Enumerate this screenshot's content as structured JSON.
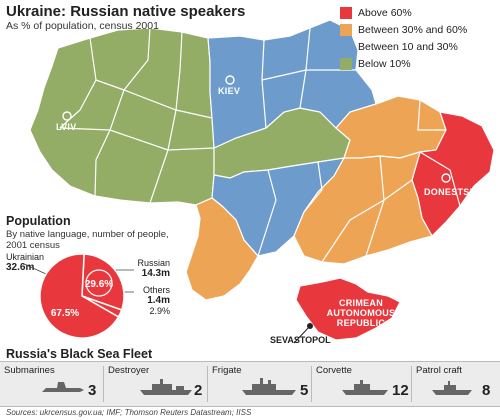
{
  "title": "Ukraine: Russian native speakers",
  "subtitle": "As % of population, census 2001",
  "legend": [
    {
      "label": "Above 60%",
      "color": "#e8383d"
    },
    {
      "label": "Between 30% and 60%",
      "color": "#eea455"
    },
    {
      "label": "Between 10 and 30%",
      "color": "#6d9ccc"
    },
    {
      "label": "Below 10%",
      "color": "#93ac66"
    }
  ],
  "cities": {
    "lviv": "LVIV",
    "kiev": "KIEV",
    "donetsk": "DONESTSK",
    "crimea": [
      "CRIMEAN",
      "AUTONOMOUS",
      "REPUBLIC"
    ],
    "sevastopol": "SEVASTOPOL"
  },
  "population": {
    "title": "Population",
    "subtitle": "By native language, number of people, 2001 census",
    "ukrainian_label": "Ukrainian",
    "ukrainian_value": "32.6m",
    "ukrainian_pct": "67.5%",
    "russian_label": "Russian",
    "russian_value": "14.3m",
    "russian_pct": "29.6%",
    "others_label": "Others",
    "others_value": "1.4m",
    "others_pct": "2.9%"
  },
  "chart_data": {
    "type": "pie",
    "categories": [
      "Ukrainian",
      "Russian",
      "Others"
    ],
    "values": [
      67.5,
      29.6,
      2.9
    ],
    "absolute_values": [
      "32.6m",
      "14.3m",
      "1.4m"
    ],
    "title": "Population",
    "subtitle": "By native language, number of people, 2001 census"
  },
  "fleet": {
    "title": "Russia's Black Sea Fleet",
    "ships": [
      {
        "name": "Submarines",
        "count": "3"
      },
      {
        "name": "Destroyer",
        "count": "2"
      },
      {
        "name": "Frigate",
        "count": "5"
      },
      {
        "name": "Corvette",
        "count": "12"
      },
      {
        "name": "Patrol craft",
        "count": "8"
      }
    ]
  },
  "sources": "Sources: ukrcensus.gov.ua; IMF; Thomson Reuters Datastream; IISS"
}
